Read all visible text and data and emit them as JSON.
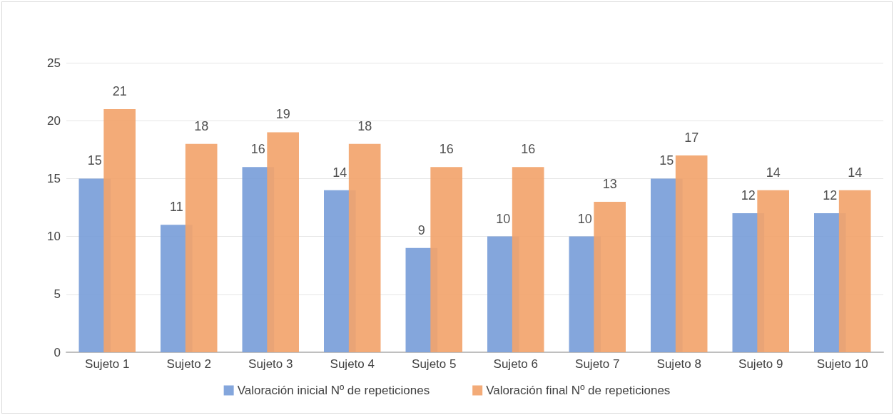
{
  "chart_data": {
    "type": "bar",
    "categories": [
      "Sujeto 1",
      "Sujeto 2",
      "Sujeto 3",
      "Sujeto 4",
      "Sujeto 5",
      "Sujeto 6",
      "Sujeto 7",
      "Sujeto 8",
      "Sujeto 9",
      "Sujeto 10"
    ],
    "series": [
      {
        "name": "Valoración inicial Nº de repeticiones",
        "color": "#7a9ed9",
        "values": [
          15,
          11,
          16,
          14,
          9,
          10,
          10,
          15,
          12,
          12
        ]
      },
      {
        "name": "Valoración final Nº de repeticiones",
        "color": "#f2a46d",
        "values": [
          21,
          18,
          19,
          18,
          16,
          16,
          13,
          17,
          14,
          14
        ]
      }
    ],
    "ylim": [
      0,
      25
    ],
    "yticks": [
      0,
      5,
      10,
      15,
      20,
      25
    ],
    "grid": "y",
    "legend": "bottom",
    "data_labels": true
  }
}
